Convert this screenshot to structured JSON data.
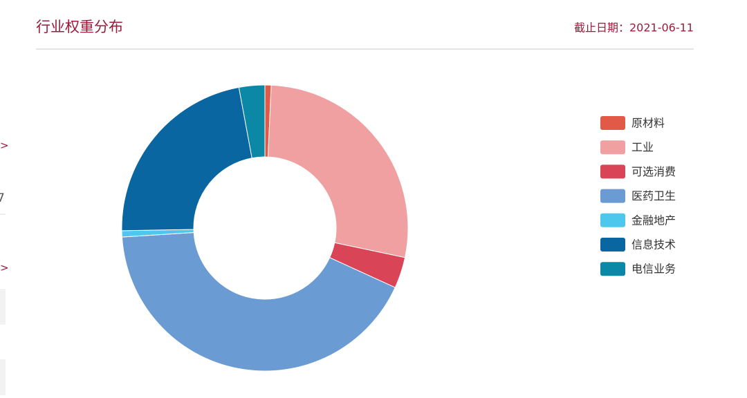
{
  "side_fragments": [
    ">",
    "7",
    ">"
  ],
  "chart_data": {
    "type": "pie",
    "title": "行业权重分布",
    "date_label": "截止日期：2021-06-11",
    "categories": [
      "原材料",
      "工业",
      "可选消费",
      "医药卫生",
      "金融地产",
      "信息技术",
      "电信业务"
    ],
    "values": [
      0.7,
      27.5,
      3.5,
      42,
      0.7,
      22.3,
      2.9
    ],
    "colors": [
      "#e05a47",
      "#f0a0a1",
      "#d94457",
      "#6a9bd3",
      "#4dc7ec",
      "#0a66a1",
      "#0b88a6"
    ],
    "donut": true,
    "legend": "right"
  }
}
